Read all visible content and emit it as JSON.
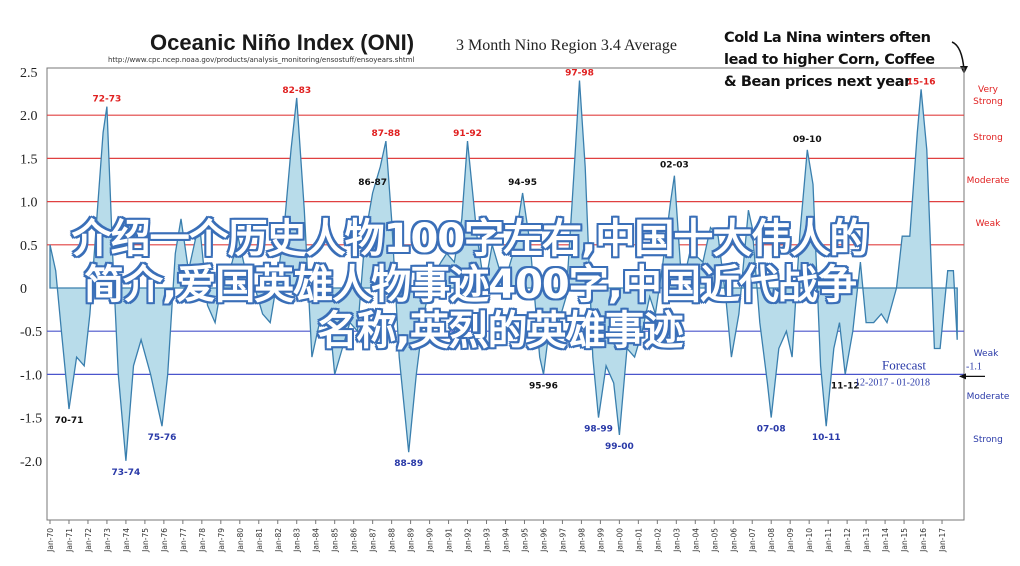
{
  "chart_data": {
    "type": "area",
    "title": "Oceanic Niño Index (ONI)",
    "subtitle": "3 Month Nino Region 3.4 Average",
    "source_url": "http://www.cpc.ncep.noaa.gov/products/analysis_monitoring/ensostuff/ensoyears.shtml",
    "ylim": [
      -2.5,
      2.5
    ],
    "y_ticks": [
      "2.5",
      "2.0",
      "1.5",
      "1.0",
      "0.5",
      "0",
      "-0.5",
      "-1.0",
      "-1.5",
      "-2.0"
    ],
    "x_tick_labels": [
      "Jan-70",
      "Jan-71",
      "Jan-72",
      "Jan-73",
      "Jan-74",
      "Jan-75",
      "Jan-76",
      "Jan-77",
      "Jan-78",
      "Jan-79",
      "Jan-80",
      "Jan-81",
      "Jan-82",
      "Jan-83",
      "Jan-84",
      "Jan-85",
      "Jan-86",
      "Jan-87",
      "Jan-88",
      "Jan-89",
      "Jan-90",
      "Jan-91",
      "Jan-92",
      "Jan-93",
      "Jan-94",
      "Jan-95",
      "Jan-96",
      "Jan-97",
      "Jan-98",
      "Jan-99",
      "Jan-00",
      "Jan-01",
      "Jan-02",
      "Jan-03",
      "Jan-04",
      "Jan-05",
      "Jan-06",
      "Jan-07",
      "Jan-08",
      "Jan-09",
      "Jan-10",
      "Jan-11",
      "Jan-12",
      "Jan-13",
      "Jan-14",
      "Jan-15",
      "Jan-16",
      "Jan-17"
    ],
    "x_range": [
      1970,
      2018
    ],
    "series": [
      {
        "values": [
          [
            1970.0,
            0.5
          ],
          [
            1970.3,
            0.2
          ],
          [
            1970.6,
            -0.5
          ],
          [
            1971.0,
            -1.4
          ],
          [
            1971.4,
            -0.8
          ],
          [
            1971.8,
            -0.9
          ],
          [
            1972.1,
            -0.3
          ],
          [
            1972.5,
            0.9
          ],
          [
            1972.8,
            1.8
          ],
          [
            1973.0,
            2.1
          ],
          [
            1973.3,
            0.4
          ],
          [
            1973.6,
            -1.0
          ],
          [
            1974.0,
            -2.0
          ],
          [
            1974.4,
            -0.9
          ],
          [
            1974.8,
            -0.6
          ],
          [
            1975.3,
            -1.0
          ],
          [
            1975.9,
            -1.6
          ],
          [
            1976.2,
            -1.0
          ],
          [
            1976.6,
            0.4
          ],
          [
            1976.9,
            0.8
          ],
          [
            1977.3,
            0.2
          ],
          [
            1977.7,
            0.6
          ],
          [
            1977.9,
            0.7
          ],
          [
            1978.3,
            -0.2
          ],
          [
            1978.7,
            -0.4
          ],
          [
            1979.0,
            0.0
          ],
          [
            1979.6,
            0.3
          ],
          [
            1979.9,
            0.6
          ],
          [
            1980.3,
            0.2
          ],
          [
            1980.8,
            0.0
          ],
          [
            1981.2,
            -0.3
          ],
          [
            1981.6,
            -0.4
          ],
          [
            1981.9,
            0.0
          ],
          [
            1982.3,
            0.6
          ],
          [
            1982.7,
            1.6
          ],
          [
            1983.0,
            2.2
          ],
          [
            1983.4,
            0.9
          ],
          [
            1983.8,
            -0.8
          ],
          [
            1984.2,
            -0.4
          ],
          [
            1984.7,
            -0.3
          ],
          [
            1985.0,
            -1.0
          ],
          [
            1985.4,
            -0.7
          ],
          [
            1985.8,
            -0.4
          ],
          [
            1986.2,
            -0.5
          ],
          [
            1986.6,
            0.6
          ],
          [
            1987.0,
            1.1
          ],
          [
            1987.4,
            1.4
          ],
          [
            1987.7,
            1.7
          ],
          [
            1988.0,
            0.8
          ],
          [
            1988.4,
            -0.8
          ],
          [
            1988.9,
            -1.9
          ],
          [
            1989.3,
            -1.0
          ],
          [
            1989.7,
            -0.3
          ],
          [
            1990.1,
            0.1
          ],
          [
            1990.6,
            0.3
          ],
          [
            1990.9,
            0.4
          ],
          [
            1991.3,
            0.3
          ],
          [
            1991.7,
            0.8
          ],
          [
            1992.0,
            1.7
          ],
          [
            1992.5,
            0.6
          ],
          [
            1992.9,
            0.0
          ],
          [
            1993.3,
            0.5
          ],
          [
            1993.7,
            0.2
          ],
          [
            1994.0,
            0.1
          ],
          [
            1994.4,
            0.4
          ],
          [
            1994.9,
            1.1
          ],
          [
            1995.3,
            0.5
          ],
          [
            1995.8,
            -0.8
          ],
          [
            1996.0,
            -1.0
          ],
          [
            1996.4,
            -0.3
          ],
          [
            1996.8,
            -0.4
          ],
          [
            1997.2,
            -0.1
          ],
          [
            1997.6,
            1.3
          ],
          [
            1997.9,
            2.4
          ],
          [
            1998.2,
            1.4
          ],
          [
            1998.6,
            -0.8
          ],
          [
            1998.9,
            -1.5
          ],
          [
            1999.3,
            -0.9
          ],
          [
            1999.7,
            -1.1
          ],
          [
            2000.0,
            -1.7
          ],
          [
            2000.4,
            -0.7
          ],
          [
            2000.8,
            -0.8
          ],
          [
            2001.2,
            -0.5
          ],
          [
            2001.6,
            -0.1
          ],
          [
            2001.9,
            -0.3
          ],
          [
            2002.3,
            0.3
          ],
          [
            2002.7,
            1.0
          ],
          [
            2002.9,
            1.3
          ],
          [
            2003.3,
            0.0
          ],
          [
            2003.7,
            0.4
          ],
          [
            2003.9,
            0.4
          ],
          [
            2004.4,
            0.3
          ],
          [
            2004.8,
            0.7
          ],
          [
            2005.2,
            0.6
          ],
          [
            2005.6,
            -0.1
          ],
          [
            2005.9,
            -0.8
          ],
          [
            2006.3,
            -0.3
          ],
          [
            2006.8,
            0.9
          ],
          [
            2007.0,
            0.7
          ],
          [
            2007.4,
            -0.4
          ],
          [
            2007.8,
            -1.1
          ],
          [
            2008.0,
            -1.5
          ],
          [
            2008.4,
            -0.7
          ],
          [
            2008.8,
            -0.5
          ],
          [
            2009.1,
            -0.8
          ],
          [
            2009.5,
            0.6
          ],
          [
            2009.9,
            1.6
          ],
          [
            2010.2,
            1.2
          ],
          [
            2010.6,
            -0.9
          ],
          [
            2010.9,
            -1.6
          ],
          [
            2011.3,
            -0.7
          ],
          [
            2011.6,
            -0.4
          ],
          [
            2011.9,
            -1.0
          ],
          [
            2012.3,
            -0.5
          ],
          [
            2012.7,
            0.3
          ],
          [
            2013.0,
            -0.4
          ],
          [
            2013.4,
            -0.4
          ],
          [
            2013.8,
            -0.3
          ],
          [
            2014.1,
            -0.4
          ],
          [
            2014.6,
            0.0
          ],
          [
            2014.9,
            0.6
          ],
          [
            2015.3,
            0.6
          ],
          [
            2015.7,
            1.8
          ],
          [
            2015.9,
            2.3
          ],
          [
            2016.2,
            1.6
          ],
          [
            2016.6,
            -0.7
          ],
          [
            2016.9,
            -0.7
          ],
          [
            2017.3,
            0.2
          ],
          [
            2017.6,
            0.2
          ],
          [
            2017.8,
            -0.6
          ]
        ]
      }
    ],
    "threshold_lines_red": [
      2.0,
      1.5,
      1.0,
      0.5
    ],
    "threshold_lines_blue": [
      -0.5,
      -1.0
    ],
    "strength_labels_positive": [
      "Very Strong",
      "Strong",
      "Moderate",
      "Weak"
    ],
    "strength_labels_negative": [
      "Weak",
      "Moderate",
      "Strong"
    ],
    "peak_labels_red": [
      {
        "text": "72-73",
        "x": 1973.0,
        "y": 2.1
      },
      {
        "text": "82-83",
        "x": 1983.0,
        "y": 2.2
      },
      {
        "text": "87-88",
        "x": 1987.7,
        "y": 1.7
      },
      {
        "text": "91-92",
        "x": 1992.0,
        "y": 1.7
      },
      {
        "text": "97-98",
        "x": 1997.9,
        "y": 2.4
      },
      {
        "text": "15-16",
        "x": 2015.9,
        "y": 2.3
      }
    ],
    "peak_labels_black": [
      {
        "text": "86-87",
        "x": 1987.0,
        "y": 1.1
      },
      {
        "text": "94-95",
        "x": 1994.9,
        "y": 1.1
      },
      {
        "text": "02-03",
        "x": 2002.9,
        "y": 1.3
      },
      {
        "text": "09-10",
        "x": 2009.9,
        "y": 1.6
      }
    ],
    "trough_labels_black": [
      {
        "text": "70-71",
        "x": 1971.0,
        "y": -1.4
      },
      {
        "text": "95-96",
        "x": 1996.0,
        "y": -1.0
      },
      {
        "text": "11-12",
        "x": 2011.9,
        "y": -1.0
      }
    ],
    "trough_labels_blue": [
      {
        "text": "73-74",
        "x": 1974.0,
        "y": -2.0
      },
      {
        "text": "75-76",
        "x": 1975.9,
        "y": -1.6
      },
      {
        "text": "88-89",
        "x": 1988.9,
        "y": -1.9
      },
      {
        "text": "98-99",
        "x": 1998.9,
        "y": -1.5
      },
      {
        "text": "99-00",
        "x": 2000.0,
        "y": -1.7
      },
      {
        "text": "07-08",
        "x": 2008.0,
        "y": -1.5
      },
      {
        "text": "10-11",
        "x": 2010.9,
        "y": -1.6
      }
    ],
    "forecast": {
      "label": "Forecast",
      "range": "12-2017 - 01-2018",
      "value": "-1.1"
    },
    "annotation": [
      "Cold La Nina winters often",
      "lead to higher Corn, Coffee",
      "& Bean prices next year"
    ],
    "colors": {
      "fill": "#b8dcea",
      "stroke": "#3a7fae",
      "red_line": "#e04040",
      "blue_line": "#4a55cc",
      "red_text": "#e02020",
      "blue_text": "#2a3aa8"
    }
  },
  "overlay": {
    "line1": "介绍一个历史人物100字左右,中国十大伟人的",
    "line2": "简介,爱国英雄人物事迹400字,中国近代战争",
    "line3": "名称,英烈的英雄事迹"
  }
}
